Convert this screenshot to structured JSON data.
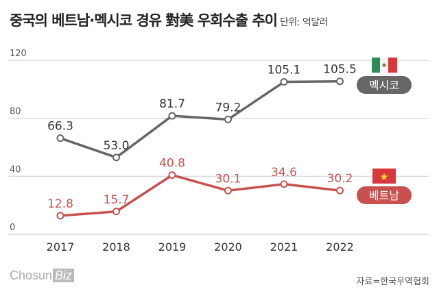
{
  "title": "중국의 베트남·멕시코 경유 對美 우회수출 추이",
  "unit": "단위: 억달러",
  "source": "자료=한국무역협회",
  "logo": "ChosunBiz",
  "chart_data": {
    "type": "line",
    "categories": [
      "2017",
      "2018",
      "2019",
      "2020",
      "2021",
      "2022"
    ],
    "ylim": [
      0,
      120
    ],
    "yticks": [
      0,
      40,
      80,
      120
    ],
    "grid": true,
    "series": [
      {
        "name": "멕시코",
        "color": "#666666",
        "flag": "mexico-flag",
        "values": [
          66.3,
          53.0,
          81.7,
          79.2,
          105.1,
          105.5
        ]
      },
      {
        "name": "베트남",
        "color": "#c8504f",
        "flag": "vietnam-flag",
        "values": [
          12.8,
          15.7,
          40.8,
          30.1,
          34.6,
          30.2
        ]
      }
    ]
  }
}
